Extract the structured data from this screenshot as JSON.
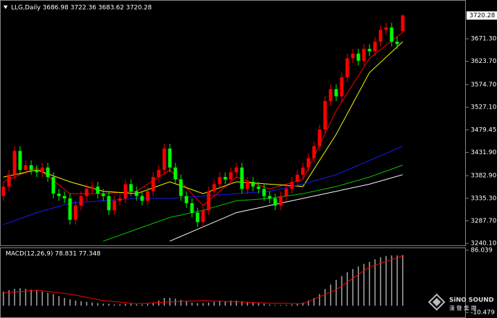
{
  "chart_data": {
    "type": "candlestick",
    "title": "LLG,Daily 3686.98 3722.36 3683.62 3720.28",
    "up_color": "#ff0000",
    "down_color": "#00ff00",
    "open": [
      3340,
      3360,
      3385,
      3435,
      3395,
      3405,
      3395,
      3390,
      3400,
      3380,
      3345,
      3340,
      3335,
      3290,
      3320,
      3340,
      3355,
      3360,
      3345,
      3340,
      3310,
      3330,
      3335,
      3365,
      3350,
      3340,
      3330,
      3350,
      3380,
      3395,
      3440,
      3400,
      3375,
      3340,
      3325,
      3305,
      3285,
      3310,
      3350,
      3365,
      3380,
      3375,
      3390,
      3400,
      3355,
      3370,
      3360,
      3355,
      3340,
      3335,
      3320,
      3340,
      3355,
      3370,
      3385,
      3400,
      3420,
      3445,
      3480,
      3540,
      3565,
      3550,
      3590,
      3630,
      3640,
      3625,
      3650,
      3645,
      3665,
      3690,
      3695,
      3665,
      3686.98
    ],
    "high": [
      3370,
      3395,
      3445,
      3445,
      3415,
      3415,
      3405,
      3410,
      3410,
      3390,
      3355,
      3350,
      3345,
      3330,
      3350,
      3365,
      3370,
      3370,
      3355,
      3350,
      3340,
      3345,
      3375,
      3375,
      3360,
      3350,
      3360,
      3390,
      3405,
      3450,
      3450,
      3410,
      3385,
      3350,
      3335,
      3315,
      3320,
      3360,
      3375,
      3390,
      3390,
      3400,
      3410,
      3410,
      3380,
      3380,
      3370,
      3365,
      3350,
      3345,
      3350,
      3365,
      3380,
      3395,
      3410,
      3430,
      3455,
      3490,
      3550,
      3575,
      3575,
      3600,
      3640,
      3650,
      3650,
      3660,
      3660,
      3675,
      3700,
      3705,
      3705,
      3675,
      3722.36
    ],
    "low": [
      3330,
      3350,
      3375,
      3385,
      3385,
      3385,
      3380,
      3380,
      3370,
      3335,
      3330,
      3325,
      3280,
      3280,
      3310,
      3330,
      3345,
      3335,
      3330,
      3300,
      3300,
      3320,
      3325,
      3340,
      3330,
      3320,
      3320,
      3340,
      3370,
      3385,
      3390,
      3365,
      3330,
      3315,
      3295,
      3275,
      3275,
      3300,
      3340,
      3355,
      3365,
      3365,
      3380,
      3345,
      3345,
      3350,
      3345,
      3330,
      3325,
      3310,
      3310,
      3330,
      3345,
      3360,
      3375,
      3390,
      3410,
      3435,
      3470,
      3530,
      3540,
      3540,
      3580,
      3620,
      3615,
      3615,
      3635,
      3635,
      3655,
      3680,
      3655,
      3650,
      3683.62
    ],
    "close": [
      3360,
      3385,
      3435,
      3395,
      3405,
      3395,
      3390,
      3400,
      3380,
      3345,
      3340,
      3335,
      3290,
      3320,
      3340,
      3355,
      3360,
      3345,
      3340,
      3310,
      3330,
      3335,
      3365,
      3350,
      3340,
      3330,
      3350,
      3380,
      3395,
      3440,
      3400,
      3375,
      3340,
      3325,
      3305,
      3285,
      3310,
      3350,
      3365,
      3380,
      3375,
      3390,
      3400,
      3355,
      3370,
      3360,
      3355,
      3340,
      3335,
      3320,
      3340,
      3355,
      3370,
      3385,
      3400,
      3420,
      3445,
      3480,
      3540,
      3565,
      3550,
      3590,
      3630,
      3640,
      3625,
      3650,
      3645,
      3665,
      3690,
      3695,
      3665,
      3660,
      3720.28
    ],
    "moving_averages": [
      {
        "color": "#ff0000",
        "values": [
          3370,
          3400,
          3345,
          3345,
          3350,
          3395,
          3320,
          3380,
          3355,
          3375,
          3520,
          3630,
          3685
        ]
      },
      {
        "color": "#ffff00",
        "values": [
          3380,
          3395,
          3370,
          3350,
          3345,
          3370,
          3345,
          3370,
          3365,
          3360,
          3470,
          3600,
          3665
        ]
      },
      {
        "color": "#1a1aff",
        "values": [
          3280,
          3305,
          3325,
          3330,
          3335,
          3335,
          3340,
          3345,
          3350,
          3365,
          3385,
          3415,
          3445
        ]
      },
      {
        "color": "#00cc00",
        "values": [
          null,
          null,
          null,
          3245,
          3270,
          3295,
          3310,
          3330,
          3335,
          3345,
          3360,
          3380,
          3405
        ]
      },
      {
        "color": "#ffffff",
        "values": [
          null,
          null,
          null,
          null,
          null,
          3245,
          3275,
          3305,
          3320,
          3335,
          3350,
          3365,
          3385
        ]
      }
    ],
    "ylim": [
      3236,
      3750
    ],
    "yticks": [
      {
        "value": 3240.1,
        "label": "3240.10"
      },
      {
        "value": 3287.7,
        "label": "3287.70"
      },
      {
        "value": 3335.3,
        "label": "3335.30"
      },
      {
        "value": 3382.9,
        "label": "3382.90"
      },
      {
        "value": 3431.9,
        "label": "3431.90"
      },
      3479.45,
      {
        "value": 3527.1,
        "label": "3527.10"
      },
      {
        "value": 3574.7,
        "label": "3574.70"
      },
      {
        "value": 3623.7,
        "label": "3623.70"
      },
      {
        "value": 3671.3,
        "label": "3671.30"
      }
    ],
    "macd": {
      "title": "MACD(12,26,9) 78.831 77.348",
      "histogram_color": "#ffffff",
      "signal_color": "#ff0000",
      "values": [
        22,
        24,
        26,
        27,
        26,
        25,
        24,
        22,
        20,
        18,
        15,
        12,
        10,
        8,
        7,
        6,
        5,
        4,
        3,
        3,
        2,
        2,
        3,
        3,
        2,
        2,
        3,
        5,
        8,
        12,
        12,
        11,
        9,
        7,
        5,
        4,
        4,
        5,
        6,
        7,
        7,
        8,
        8,
        7,
        6,
        5,
        4,
        3,
        2,
        1,
        1,
        1,
        2,
        3,
        5,
        8,
        12,
        18,
        26,
        33,
        40,
        46,
        52,
        57,
        61,
        65,
        68,
        72,
        75,
        77,
        78,
        78,
        78.831
      ],
      "signal": [
        20,
        24,
        18,
        8,
        3,
        6,
        8,
        6,
        4,
        3,
        25,
        60,
        77.348
      ],
      "ylim": [
        -10.479,
        86.039
      ],
      "yticks": [
        86.039,
        -10.479
      ]
    },
    "watermark": "SiNO SOUND",
    "watermark_sub": "漢 聲 集 團"
  }
}
